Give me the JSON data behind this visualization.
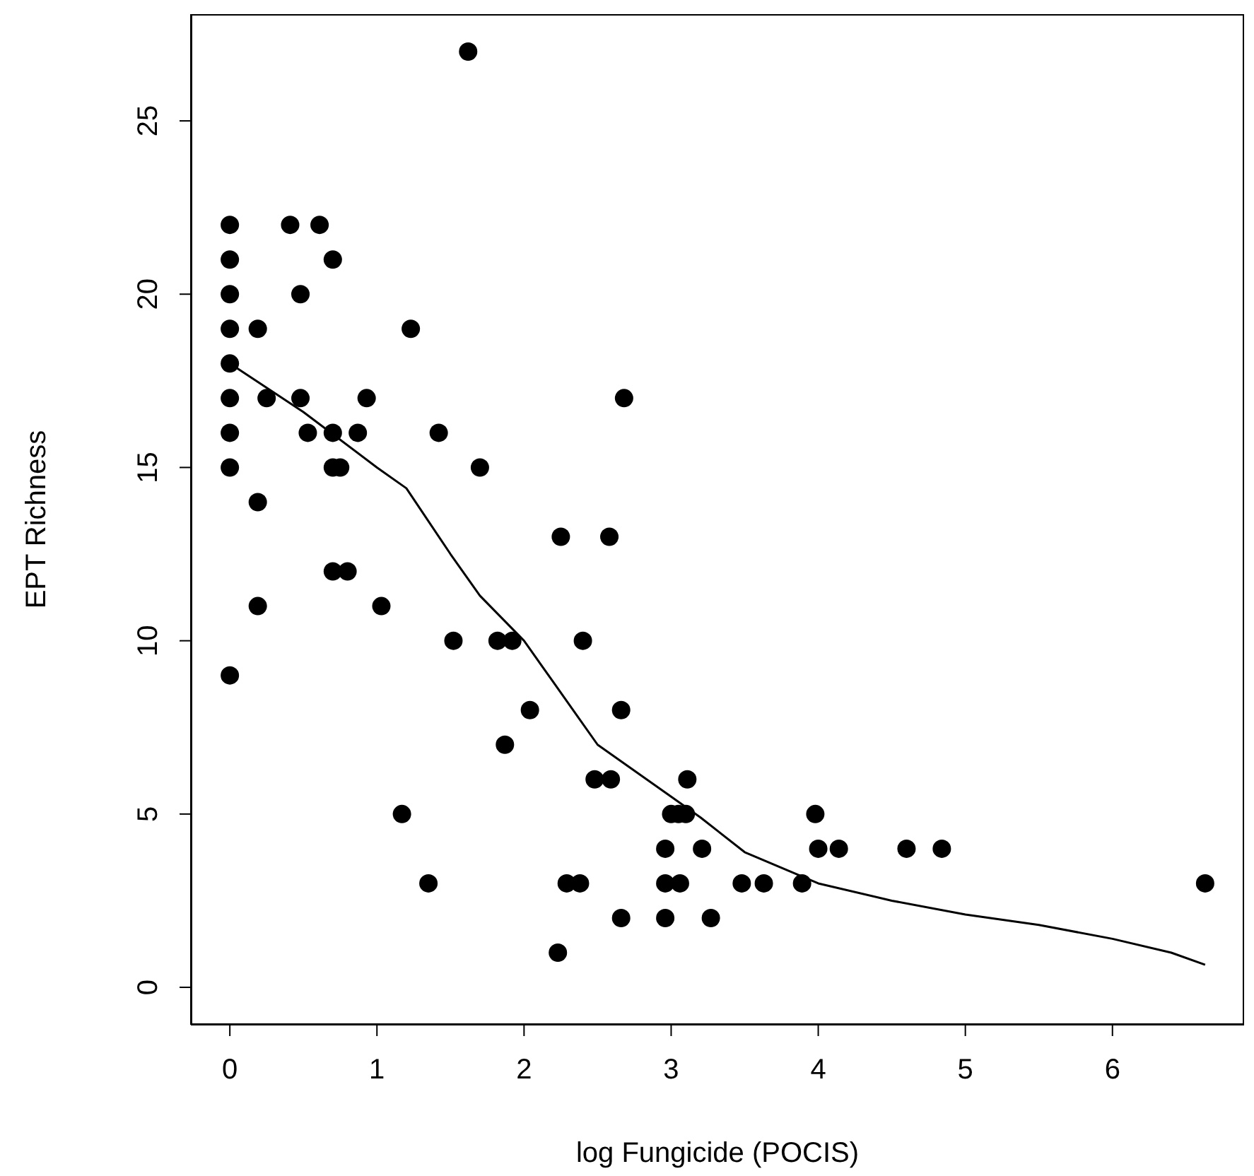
{
  "chart_data": {
    "type": "scatter",
    "xlabel": "log Fungicide (POCIS)",
    "ylabel": "EPT Richness",
    "xlim": [
      -0.265,
      6.895
    ],
    "ylim": [
      -1.08,
      28.08
    ],
    "xticks": [
      0,
      1,
      2,
      3,
      4,
      5,
      6
    ],
    "yticks": [
      0,
      5,
      10,
      15,
      20,
      25
    ],
    "series": [
      {
        "color": "#000000",
        "marker": "circle",
        "x": [
          0,
          0,
          0,
          0,
          0,
          0,
          0,
          0,
          0,
          0.19,
          0.19,
          0.19,
          0.25,
          0.41,
          0.48,
          0.48,
          0.61,
          0.53,
          0.7,
          0.7,
          0.7,
          0.75,
          0.7,
          0.8,
          0.87,
          0.93,
          1.03,
          1.17,
          1.23,
          1.35,
          1.42,
          1.52,
          1.62,
          1.7,
          1.82,
          1.92,
          1.87,
          2.04,
          2.23,
          2.25,
          2.29,
          2.38,
          2.4,
          2.48,
          2.59,
          2.58,
          2.66,
          2.68,
          2.66,
          2.96,
          2.96,
          2.96,
          3.0,
          3.05,
          3.1,
          3.06,
          3.11,
          3.21,
          3.27,
          3.48,
          3.63,
          3.89,
          3.98,
          4.0,
          4.14,
          4.6,
          4.84,
          6.63
        ],
        "values": [
          22,
          21,
          20,
          19,
          18,
          17,
          16,
          15,
          9,
          19,
          14,
          11,
          17,
          22,
          20,
          17,
          22,
          16,
          21,
          16,
          15,
          15,
          12,
          12,
          16,
          17,
          11,
          5,
          19,
          3,
          16,
          10,
          27,
          15,
          10,
          10,
          7,
          8,
          1,
          13,
          3,
          3,
          10,
          6,
          6,
          13,
          2,
          17,
          8,
          4,
          2,
          3,
          5,
          5,
          5,
          3,
          6,
          4,
          2,
          3,
          3,
          3,
          5,
          4,
          4,
          4,
          4,
          3
        ]
      },
      {
        "type": "line",
        "color": "#000000",
        "marker": "none",
        "line_style": "solid",
        "x": [
          0,
          0.5,
          1,
          1.2,
          1.5,
          1.7,
          2,
          2.2,
          2.5,
          3,
          3.2,
          3.5,
          4,
          4.5,
          5,
          5.5,
          6,
          6.4,
          6.63
        ],
        "values": [
          18,
          16.6,
          15,
          14.4,
          12.5,
          11.3,
          10,
          8.8,
          7,
          5.5,
          4.9,
          3.9,
          3,
          2.5,
          2.1,
          1.8,
          1.4,
          1,
          0.65
        ]
      }
    ]
  }
}
